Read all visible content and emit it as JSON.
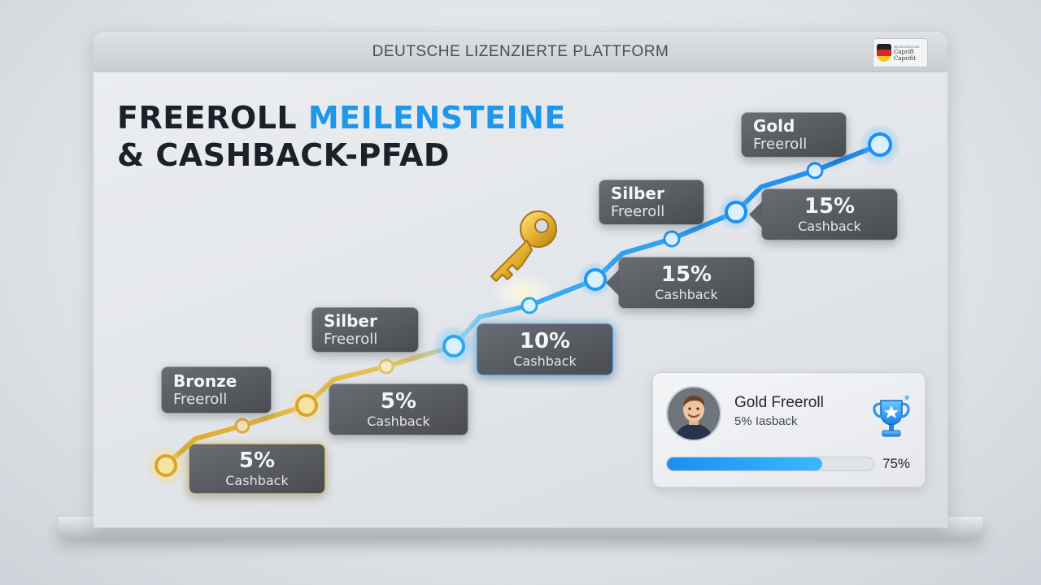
{
  "header": {
    "title": "DEUTSCHE LIZENZIERTE PLATTFORM"
  },
  "seal": {
    "icon": "shield-flag-icon",
    "line_small": "BEGEHKWDKR",
    "line1": "Caprift",
    "line2": "Caprifit"
  },
  "heading": {
    "part1": "FREEROLL ",
    "accent": "MEILENSTEINE",
    "line2": "& CASHBACK-PFAD",
    "accent_color": "#1e96ec"
  },
  "path": {
    "gold_color": "#e2b33c",
    "blue_color": "#1e8ff0",
    "milestones": [
      {
        "tier": "Bronze",
        "reward": "Freeroll",
        "cashback_pct": "5%",
        "cashback_label": "Cashback"
      },
      {
        "tier": "Silber",
        "reward": "Freeroll",
        "cashback_pct": "5%",
        "cashback_label": "Cashback"
      },
      {
        "tier": "",
        "reward": "",
        "cashback_pct": "10%",
        "cashback_label": "Cashback"
      },
      {
        "tier": "Silber",
        "reward": "Freeroll",
        "cashback_pct": "15%",
        "cashback_label": "Cashback"
      },
      {
        "tier": "Gold",
        "reward": "Freeroll",
        "cashback_pct": "15%",
        "cashback_label": "Cashback"
      }
    ]
  },
  "key": {
    "icon": "golden-key-icon"
  },
  "profile": {
    "name": "Gold Freeroll",
    "subtitle": "5% Iasback",
    "trophy_icon": "trophy-star-icon",
    "progress": 0.75,
    "progress_label": "75%"
  }
}
